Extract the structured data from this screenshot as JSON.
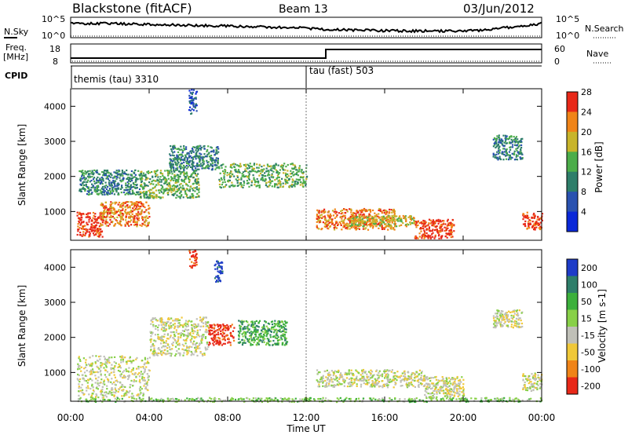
{
  "header": {
    "radar": "Blackstone (fitACF)",
    "beam": "Beam 13",
    "date": "03/Jun/2012"
  },
  "top_panels": {
    "nsky_label": "N.Sky",
    "nsky_ticks": [
      "10^5",
      "10^0"
    ],
    "nsearch_label": "N.Search",
    "nsearch_ticks": [
      "10^5",
      "10^0"
    ],
    "freq_label": "Freq.",
    "freq_unit": "[MHz]",
    "freq_ticks": [
      "18",
      "8"
    ],
    "nave_label": "Nave",
    "nave_ticks": [
      "60",
      "0"
    ],
    "cpid_label": "CPID",
    "cpid_segments": [
      {
        "name": "themis (tau) 3310",
        "start_hour": 0
      },
      {
        "name": "tau (fast) 503",
        "start_hour": 12
      }
    ]
  },
  "chart_data": [
    {
      "type": "heatmap",
      "title": "",
      "xlabel": "Time UT",
      "ylabel": "Slant Range [km]",
      "xlim_hours": [
        0,
        24
      ],
      "ylim_km": [
        180,
        4500
      ],
      "x_tick_labels": [
        "00:00",
        "04:00",
        "08:00",
        "12:00",
        "16:00",
        "20:00",
        "00:00"
      ],
      "y_tick_values": [
        1000,
        2000,
        3000,
        4000
      ],
      "colorbar_label": "Power [dB]",
      "colorbar_ticks": [
        "4",
        "8",
        "12",
        "16",
        "20",
        "24",
        "28"
      ],
      "colorbar_colors": [
        "#0a28d8",
        "#2a52b0",
        "#2e7e6a",
        "#4cad4a",
        "#c8b42a",
        "#f08418",
        "#e82818"
      ],
      "scatter_bands": [
        {
          "from_hour": 0.3,
          "to_hour": 1.6,
          "range_from_km": 300,
          "range_to_km": 1000,
          "level": 6
        },
        {
          "from_hour": 1.5,
          "to_hour": 4.0,
          "range_from_km": 600,
          "range_to_km": 1300,
          "level": 5
        },
        {
          "from_hour": 0.4,
          "to_hour": 3.5,
          "range_from_km": 1500,
          "range_to_km": 2200,
          "level": 2
        },
        {
          "from_hour": 3.5,
          "to_hour": 6.5,
          "range_from_km": 1400,
          "range_to_km": 2200,
          "level": 3
        },
        {
          "from_hour": 5.0,
          "to_hour": 7.5,
          "range_from_km": 2200,
          "range_to_km": 2900,
          "level": 2
        },
        {
          "from_hour": 7.5,
          "to_hour": 12.0,
          "range_from_km": 1700,
          "range_to_km": 2400,
          "level": 3
        },
        {
          "from_hour": 6.0,
          "to_hour": 6.4,
          "range_from_km": 3800,
          "range_to_km": 4500,
          "level": 1
        },
        {
          "from_hour": 12.5,
          "to_hour": 16.5,
          "range_from_km": 500,
          "range_to_km": 1100,
          "level": 5
        },
        {
          "from_hour": 14.0,
          "to_hour": 17.5,
          "range_from_km": 600,
          "range_to_km": 900,
          "level": 4
        },
        {
          "from_hour": 17.5,
          "to_hour": 19.5,
          "range_from_km": 250,
          "range_to_km": 800,
          "level": 6
        },
        {
          "from_hour": 21.5,
          "to_hour": 23.0,
          "range_from_km": 2500,
          "range_to_km": 3200,
          "level": 2
        },
        {
          "from_hour": 23.0,
          "to_hour": 24.0,
          "range_from_km": 500,
          "range_to_km": 1000,
          "level": 6
        }
      ]
    },
    {
      "type": "heatmap",
      "title": "",
      "xlabel": "Time UT",
      "ylabel": "Slant Range [km]",
      "xlim_hours": [
        0,
        24
      ],
      "ylim_km": [
        180,
        4500
      ],
      "x_tick_labels": [
        "00:00",
        "04:00",
        "08:00",
        "12:00",
        "16:00",
        "20:00",
        "00:00"
      ],
      "y_tick_values": [
        1000,
        2000,
        3000,
        4000
      ],
      "colorbar_label": "Velocity [m s-1]",
      "colorbar_ticks": [
        "200",
        "100",
        "50",
        "15",
        "-15",
        "-50",
        "-100",
        "-200"
      ],
      "colorbar_colors": [
        "#1e3cc8",
        "#2e7e6a",
        "#3cb03c",
        "#88d048",
        "#c0c0b8",
        "#f0c838",
        "#f08418",
        "#e82818"
      ],
      "scatter_bands": [
        {
          "from_hour": 0.3,
          "to_hour": 4.0,
          "range_from_km": 300,
          "range_to_km": 1500,
          "level": 4
        },
        {
          "from_hour": 4.0,
          "to_hour": 7.0,
          "range_from_km": 1500,
          "range_to_km": 2600,
          "level": 4
        },
        {
          "from_hour": 7.0,
          "to_hour": 8.3,
          "range_from_km": 1800,
          "range_to_km": 2400,
          "level": 7
        },
        {
          "from_hour": 6.0,
          "to_hour": 6.4,
          "range_from_km": 4000,
          "range_to_km": 4500,
          "level": 7
        },
        {
          "from_hour": 7.3,
          "to_hour": 7.7,
          "range_from_km": 3600,
          "range_to_km": 4200,
          "level": 0
        },
        {
          "from_hour": 8.5,
          "to_hour": 11.0,
          "range_from_km": 1800,
          "range_to_km": 2500,
          "level": 2
        },
        {
          "from_hour": 12.5,
          "to_hour": 18.0,
          "range_from_km": 600,
          "range_to_km": 1100,
          "level": 4
        },
        {
          "from_hour": 18.0,
          "to_hour": 20.0,
          "range_from_km": 300,
          "range_to_km": 900,
          "level": 4
        },
        {
          "from_hour": 21.5,
          "to_hour": 23.0,
          "range_from_km": 2300,
          "range_to_km": 2800,
          "level": 4
        },
        {
          "from_hour": 23.0,
          "to_hour": 24.0,
          "range_from_km": 500,
          "range_to_km": 1000,
          "level": 4
        },
        {
          "from_hour": 0.3,
          "to_hour": 24.0,
          "range_from_km": 180,
          "range_to_km": 300,
          "level": 3
        }
      ]
    }
  ]
}
